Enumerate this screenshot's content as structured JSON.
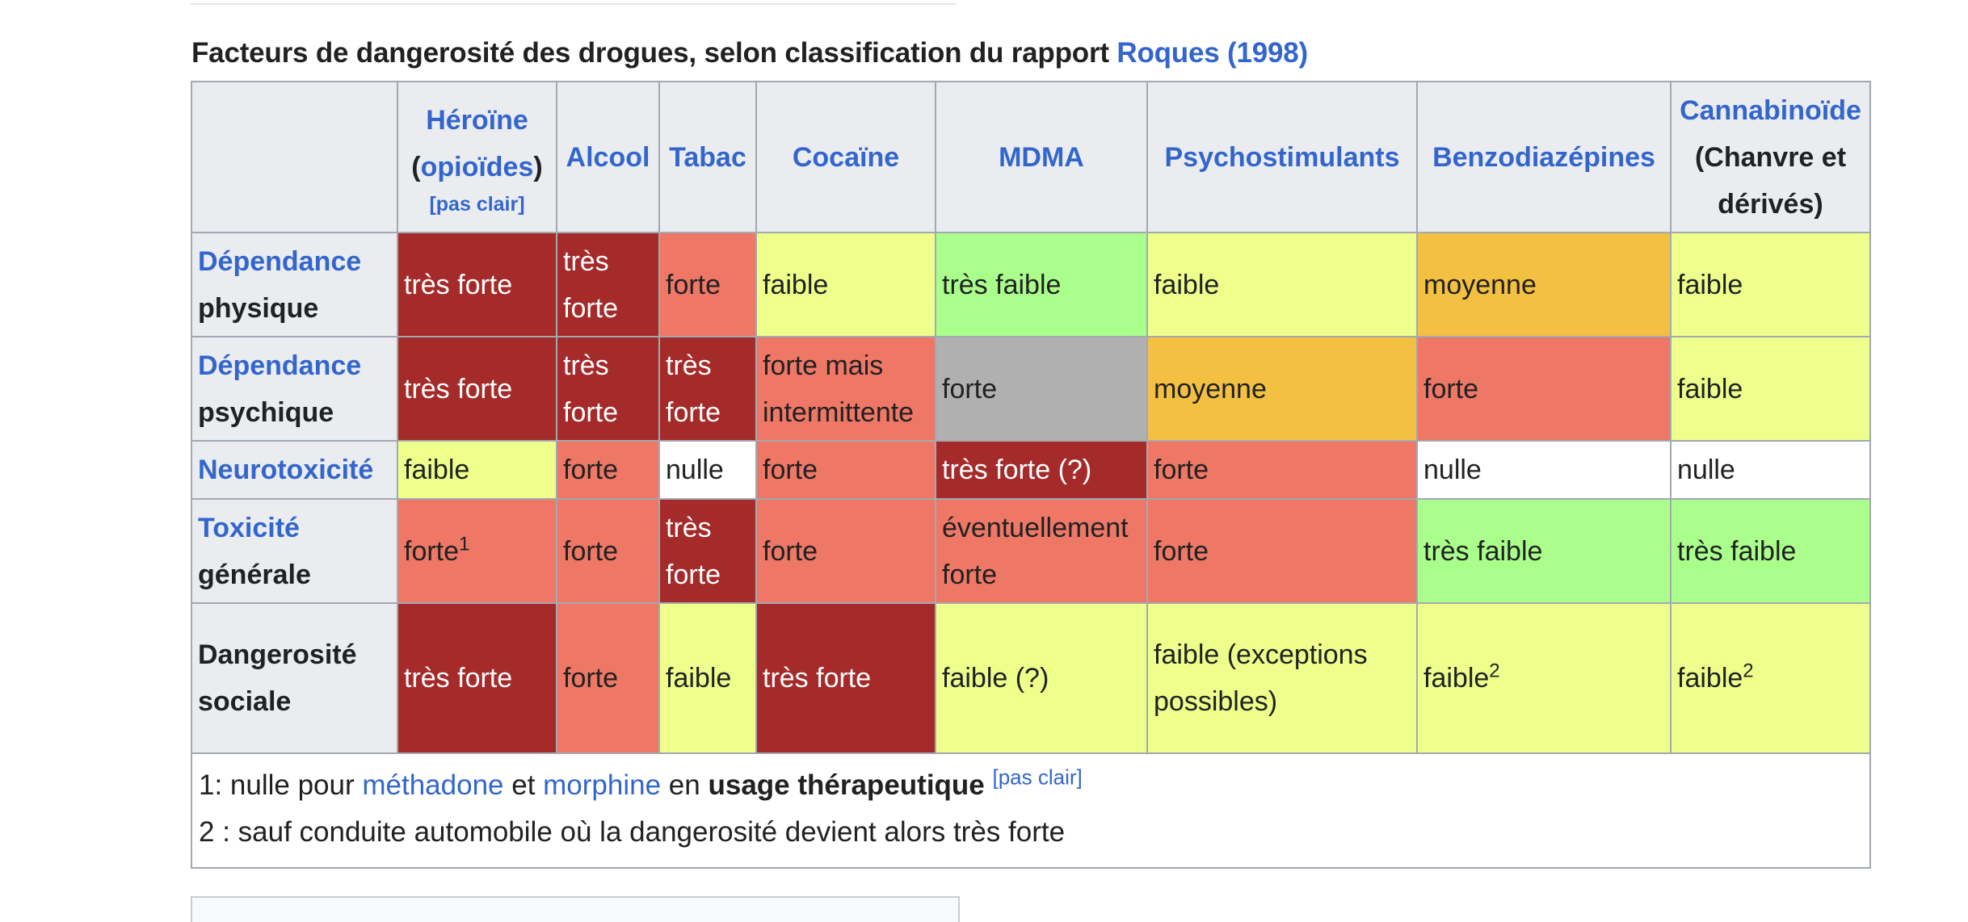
{
  "caption": {
    "text": "Facteurs de dangerosité des drogues, selon classification du rapport ",
    "link": "Roques (1998)"
  },
  "header": {
    "heroine": "Héroïne",
    "heroine_open": "(",
    "heroine_sub_link": "opioïdes",
    "heroine_close": ")",
    "heroine_clarify": "[pas clair]",
    "alcool": "Alcool",
    "tabac": "Tabac",
    "cocaine": "Cocaïne",
    "mdma": "MDMA",
    "psychostimulants": "Psychostimulants",
    "benzodiazepines": "Benzodiazépines",
    "cannabinoide": "Cannabinoïde",
    "cannabinoide_sub": "(Chanvre et dérivés)"
  },
  "rows": [
    {
      "label_link": "Dépendance",
      "label_text": "physique",
      "cells": [
        "très forte",
        "très forte",
        "forte",
        "faible",
        "très faible",
        "faible",
        "moyenne",
        "faible"
      ]
    },
    {
      "label_link": "Dépendance",
      "label_text": "psychique",
      "cells": [
        "très forte",
        "très forte",
        "très forte",
        "forte mais intermittente",
        "forte",
        "moyenne",
        "forte",
        "faible"
      ]
    },
    {
      "label_link": "Neurotoxicité",
      "label_text": "",
      "cells": [
        "faible",
        "forte",
        "nulle",
        "forte",
        "très forte (?)",
        "forte",
        "nulle",
        "nulle"
      ]
    },
    {
      "label_link": "Toxicité",
      "label_text": "générale",
      "cells": [
        "forte",
        "forte",
        "très forte",
        "forte",
        "éventuellement forte",
        "forte",
        "très faible",
        "très faible"
      ],
      "note": "1"
    },
    {
      "label_text": "Dangerosité sociale",
      "cells": [
        "très forte",
        "forte",
        "faible",
        "très forte",
        "faible (?)",
        "faible (exceptions possibles)",
        "faible",
        "faible"
      ],
      "note": "2"
    }
  ],
  "footnotes": {
    "n1_prefix": "1: nulle pour ",
    "n1_link1": "méthadone",
    "n1_mid": " et ",
    "n1_link2": "morphine",
    "n1_en": " en ",
    "n1_bold": "usage thérapeutique",
    "n1_clarify": "[pas clair]",
    "n2": "2 : sauf conduite automobile où la dangerosité devient alors très forte"
  },
  "colors": {
    "tres_forte": "#a52a2a",
    "forte": "#ee7766",
    "moyenne": "#f4c042",
    "faible": "#eeff8c",
    "tres_faible": "#aaff8c",
    "inconnu": "#b0b0b0",
    "nulle": "#ffffff",
    "link": "#3366cc"
  }
}
